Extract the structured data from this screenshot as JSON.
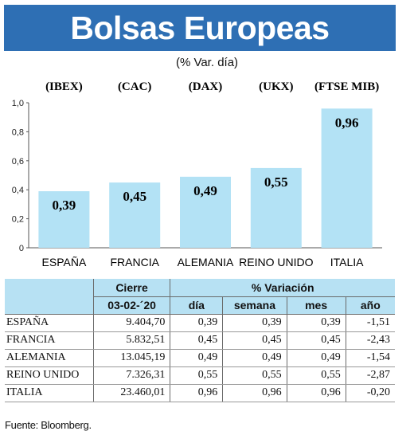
{
  "title": "Bolsas Europeas",
  "subtitle": "(% Var. día)",
  "chart_data": {
    "type": "bar",
    "categories": [
      "ESPAÑA",
      "FRANCIA",
      "ALEMANIA",
      "REINO UNIDO",
      "ITALIA"
    ],
    "tickers": [
      "(IBEX)",
      "(CAC)",
      "(DAX)",
      "(UKX)",
      "(FTSE MIB)"
    ],
    "values": [
      0.39,
      0.45,
      0.49,
      0.55,
      0.96
    ],
    "value_labels": [
      "0,39",
      "0,45",
      "0,49",
      "0,55",
      "0,96"
    ],
    "ylim": [
      0,
      1.0
    ],
    "yticks": [
      0,
      0.2,
      0.4,
      0.6,
      0.8,
      1.0
    ],
    "ytick_labels": [
      "0",
      "0,2",
      "0,4",
      "0,6",
      "0,8",
      "1,0"
    ],
    "bar_color": "#b3e2f5",
    "grid": false
  },
  "table": {
    "header_cierre": "Cierre",
    "header_date": "03-02-´20",
    "header_variacion": "% Variación",
    "col_dia": "día",
    "col_semana": "semana",
    "col_mes": "mes",
    "col_ano": "año",
    "rows": [
      {
        "name": "ESPAÑA",
        "cierre": "9.404,70",
        "dia": "0,39",
        "semana": "0,39",
        "mes": "0,39",
        "ano": "-1,51"
      },
      {
        "name": "FRANCIA",
        "cierre": "5.832,51",
        "dia": "0,45",
        "semana": "0,45",
        "mes": "0,45",
        "ano": "-2,43"
      },
      {
        "name": "ALEMANIA",
        "cierre": "13.045,19",
        "dia": "0,49",
        "semana": "0,49",
        "mes": "0,49",
        "ano": "-1,54"
      },
      {
        "name": "REINO UNIDO",
        "cierre": "7.326,31",
        "dia": "0,55",
        "semana": "0,55",
        "mes": "0,55",
        "ano": "-2,87"
      },
      {
        "name": "ITALIA",
        "cierre": "23.460,01",
        "dia": "0,96",
        "semana": "0,96",
        "mes": "0,96",
        "ano": "-0,20"
      }
    ]
  },
  "source": "Fuente: Bloomberg.",
  "colors": {
    "title_bg": "#2e6fb4",
    "header_bg": "#b7e1f3"
  }
}
